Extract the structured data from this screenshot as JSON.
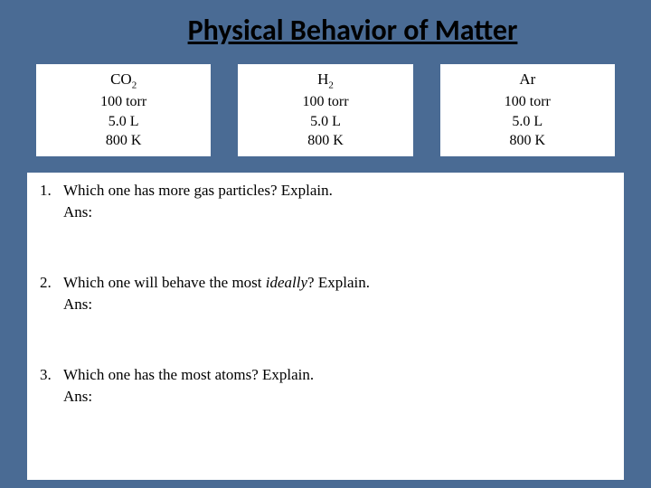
{
  "title": "Physical Behavior of Matter",
  "background_color": "#4a6b94",
  "box_background": "#ffffff",
  "text_color": "#000000",
  "gases": [
    {
      "name_html": "CO",
      "sub": "2",
      "pressure": "100 torr",
      "volume": "5.0 L",
      "temperature": "800 K"
    },
    {
      "name_html": "H",
      "sub": "2",
      "pressure": "100 torr",
      "volume": "5.0 L",
      "temperature": "800 K"
    },
    {
      "name_html": "Ar",
      "sub": "",
      "pressure": "100 torr",
      "volume": "5.0 L",
      "temperature": "800 K"
    }
  ],
  "questions": [
    {
      "num": "1.",
      "text_pre": "Which one has more gas particles? Explain.",
      "italic": "",
      "text_post": "",
      "ans_label": "Ans:"
    },
    {
      "num": "2.",
      "text_pre": "Which one will behave the most ",
      "italic": "ideally",
      "text_post": "? Explain.",
      "ans_label": "Ans:"
    },
    {
      "num": "3.",
      "text_pre": "Which one has the most atoms?  Explain.",
      "italic": "",
      "text_post": "",
      "ans_label": "Ans:"
    }
  ],
  "title_fontsize": 32,
  "body_fontsize": 17
}
